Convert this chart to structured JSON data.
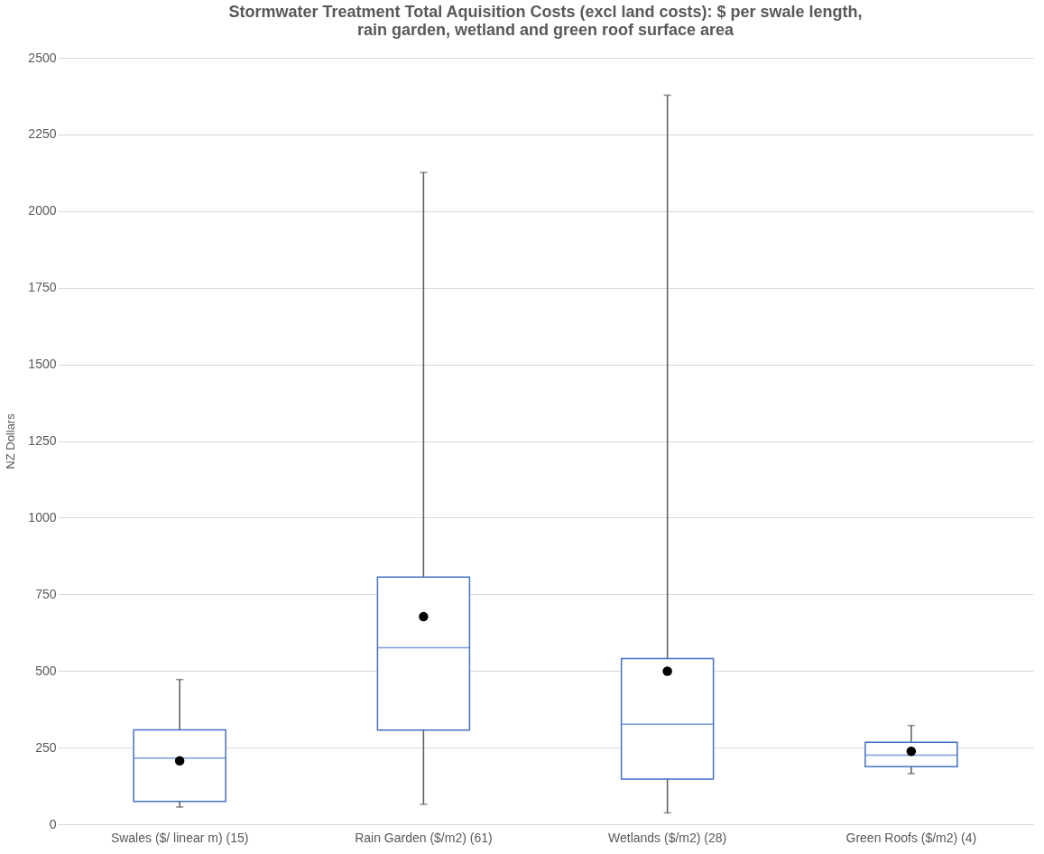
{
  "chart_data": {
    "type": "box",
    "title": "Stormwater Treatment Total Aquisition Costs (excl land costs):  $ per swale length,\nrain garden, wetland and green roof surface area",
    "ylabel": "NZ Dollars",
    "categories": [
      "Swales ($/ linear m) (15)",
      "Rain Garden ($/m2) (61)",
      "Wetlands ($/m2) (28)",
      "Green Roofs ($/m2) (4)"
    ],
    "series": [
      {
        "color": "#4472c4",
        "boxes": [
          {
            "low": 56,
            "q1": 74,
            "median": 216,
            "q3": 308,
            "high": 472,
            "mean": 207
          },
          {
            "low": 65,
            "q1": 307,
            "median": 576,
            "q3": 806,
            "high": 2126,
            "mean": 677
          },
          {
            "low": 37,
            "q1": 147,
            "median": 326,
            "q3": 540,
            "high": 2378,
            "mean": 499
          },
          {
            "low": 165,
            "q1": 188,
            "median": 225,
            "q3": 267,
            "high": 322,
            "mean": 238
          }
        ]
      }
    ],
    "ylim": [
      0,
      2500
    ],
    "yticks": [
      0,
      250,
      500,
      750,
      1000,
      1250,
      1500,
      1750,
      2000,
      2250,
      2500
    ],
    "grid": "y",
    "marker": "circle"
  }
}
